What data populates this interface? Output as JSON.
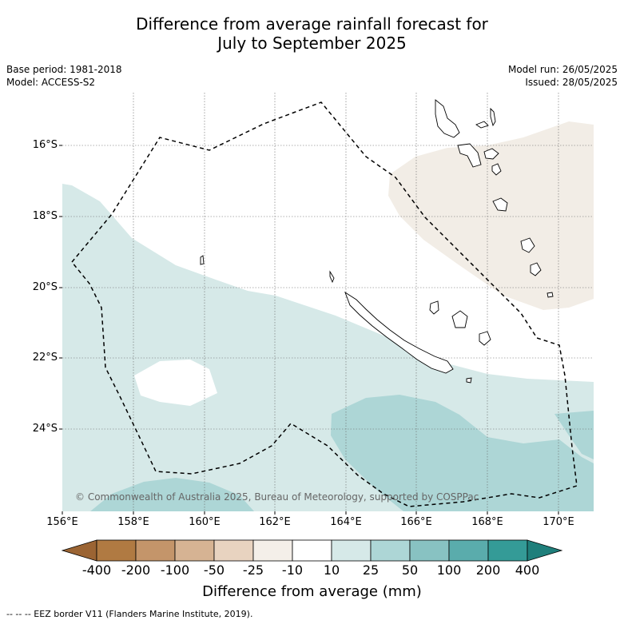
{
  "title_line1": "Difference from average rainfall forecast for",
  "title_line2": "July to September 2025",
  "base_period": "Base period: 1981-2018",
  "model": "Model: ACCESS-S2",
  "model_run": "Model run: 26/05/2025",
  "issued": "Issued: 28/05/2025",
  "lat_ticks": [
    "16°S",
    "18°S",
    "20°S",
    "22°S",
    "24°S"
  ],
  "lon_ticks": [
    "156°E",
    "158°E",
    "160°E",
    "162°E",
    "164°E",
    "166°E",
    "168°E",
    "170°E"
  ],
  "copyright": "© Commonwealth of Australia 2025, Bureau of Meteorology, supported by COSPPac",
  "colorbar": {
    "title": "Difference from average (mm)",
    "labels": [
      "-400",
      "-200",
      "-100",
      "-50",
      "-25",
      "-10",
      "10",
      "25",
      "50",
      "100",
      "200",
      "400"
    ],
    "colors": [
      "#9b6433",
      "#b07a42",
      "#c4956a",
      "#d6b393",
      "#e8d3c0",
      "#f4efe9",
      "#ffffff",
      "#d6e9e8",
      "#add6d6",
      "#88c2c2",
      "#5aacac",
      "#349b97",
      "#1f7f7b"
    ]
  },
  "footer": "--  --  -- EEZ border V11 (Flanders Marine Institute, 2019)."
}
